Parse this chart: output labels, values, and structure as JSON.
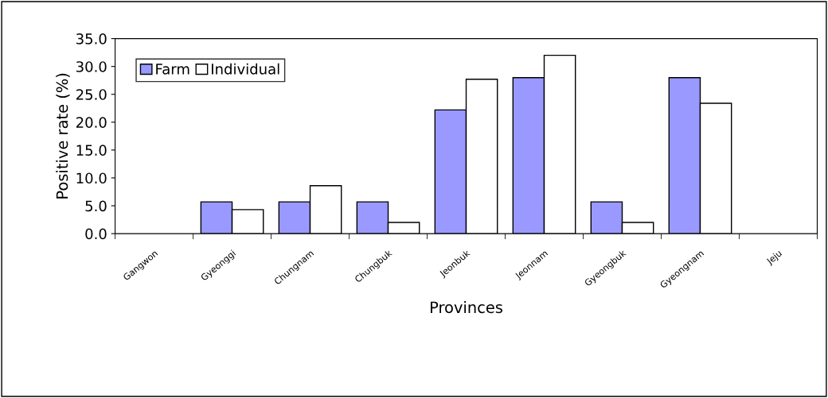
{
  "chart_data": {
    "type": "bar",
    "xlabel": "Provinces",
    "ylabel": "Positive rate (%)",
    "categories": [
      "Gangwon",
      "Gyeonggi",
      "Chungnam",
      "Chungbuk",
      "Jeonbuk",
      "Jeonnam",
      "Gyeongbuk",
      "Gyeongnam",
      "Jeju"
    ],
    "series": [
      {
        "name": "Farm",
        "color": "#9999ff",
        "values": [
          0,
          5.7,
          5.7,
          5.7,
          22.2,
          28.0,
          5.7,
          28.0,
          0
        ]
      },
      {
        "name": "Individual",
        "color": "#ffffff",
        "values": [
          0,
          4.3,
          8.6,
          2.0,
          27.7,
          32.0,
          2.0,
          23.4,
          0
        ]
      }
    ],
    "ylim": [
      0,
      35
    ],
    "yticks": [
      {
        "value": 0,
        "label": "0.0"
      },
      {
        "value": 5,
        "label": "5.0"
      },
      {
        "value": 10,
        "label": "10.0"
      },
      {
        "value": 15,
        "label": "15.0"
      },
      {
        "value": 20,
        "label": "20.0"
      },
      {
        "value": 25,
        "label": "25.0"
      },
      {
        "value": 30,
        "label": "30.0"
      },
      {
        "value": 35,
        "label": "35.0"
      }
    ],
    "grid": false,
    "legend": "top left"
  }
}
